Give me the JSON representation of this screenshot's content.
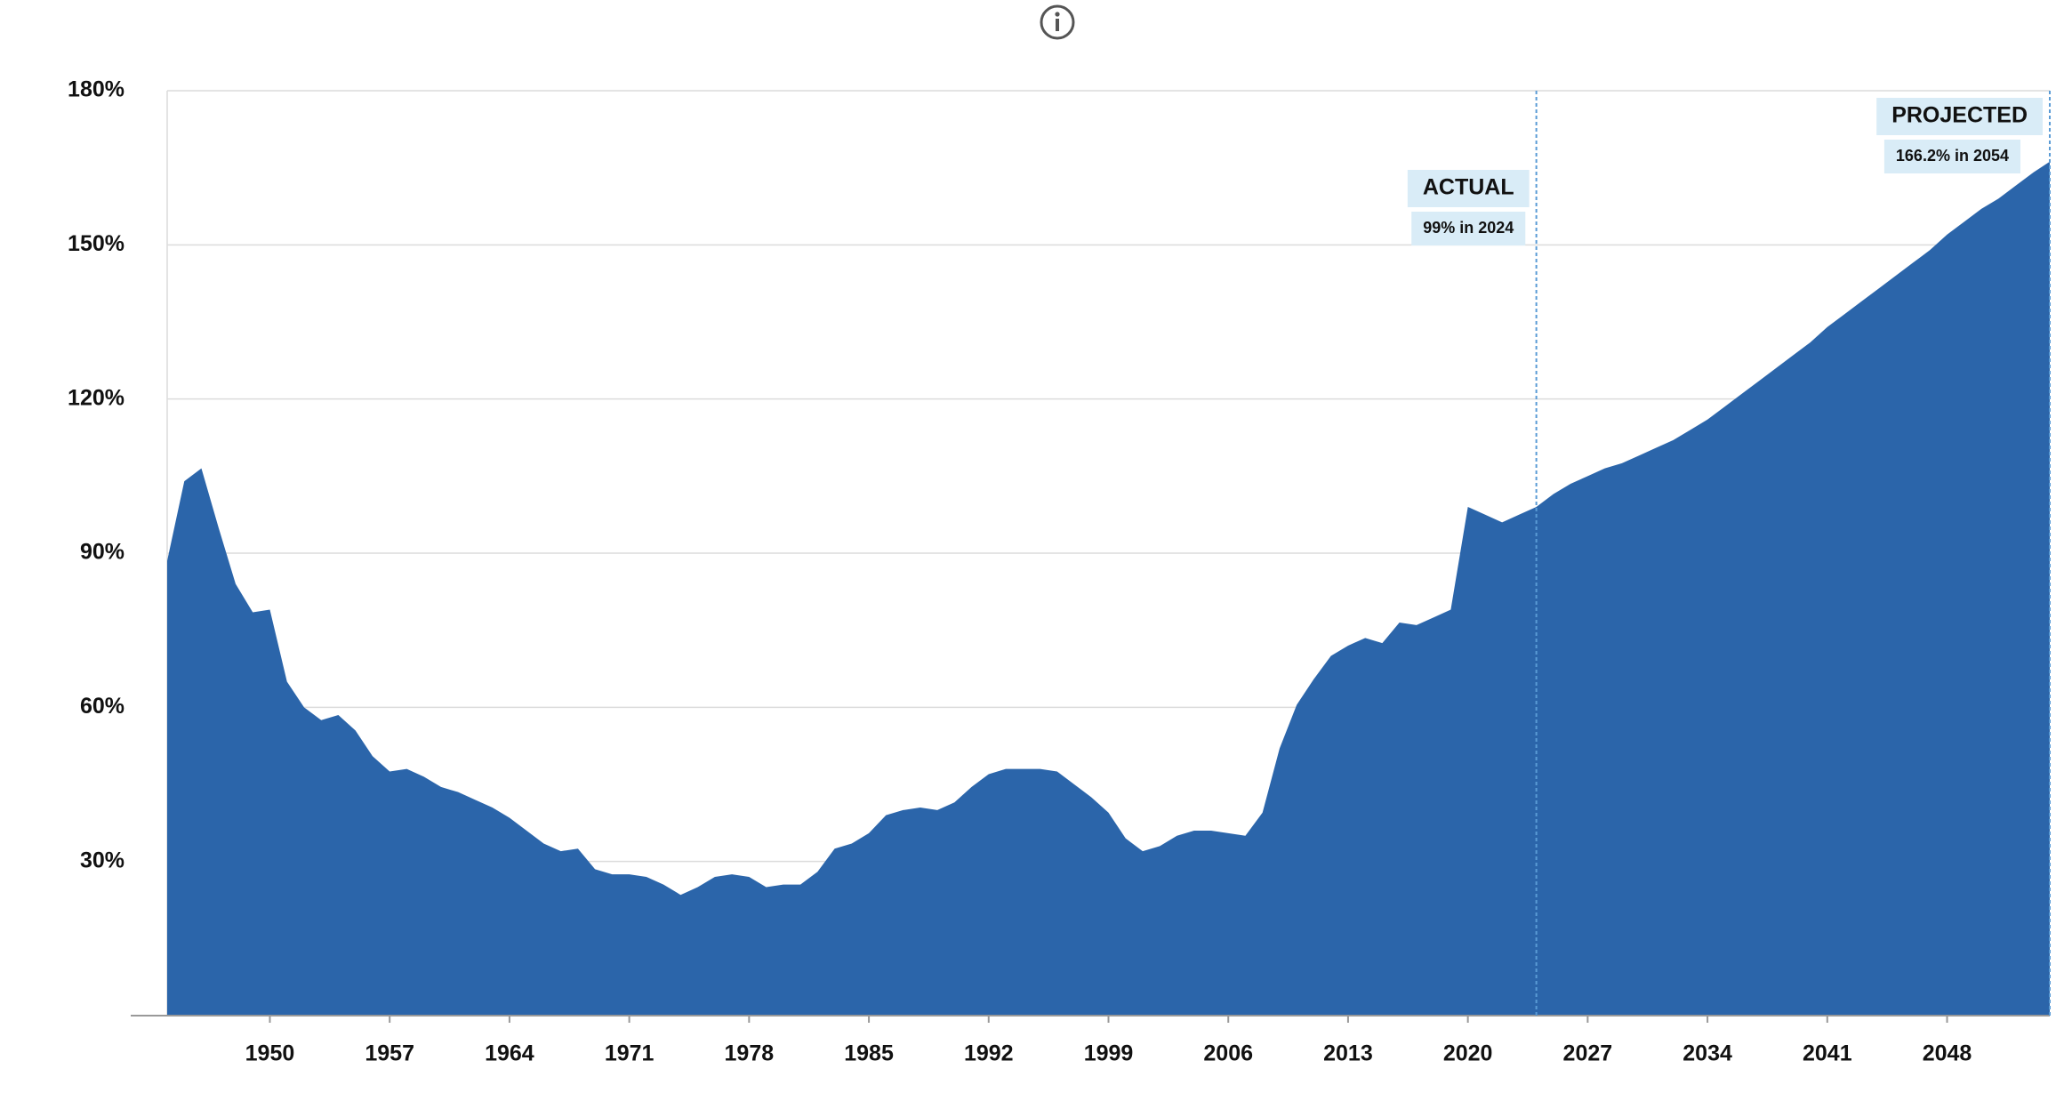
{
  "chart_data": {
    "type": "area",
    "x": [
      1944,
      1945,
      1946,
      1947,
      1948,
      1949,
      1950,
      1951,
      1952,
      1953,
      1954,
      1955,
      1956,
      1957,
      1958,
      1959,
      1960,
      1961,
      1962,
      1963,
      1964,
      1965,
      1966,
      1967,
      1968,
      1969,
      1970,
      1971,
      1972,
      1973,
      1974,
      1975,
      1976,
      1977,
      1978,
      1979,
      1980,
      1981,
      1982,
      1983,
      1984,
      1985,
      1986,
      1987,
      1988,
      1989,
      1990,
      1991,
      1992,
      1993,
      1994,
      1995,
      1996,
      1997,
      1998,
      1999,
      2000,
      2001,
      2002,
      2003,
      2004,
      2005,
      2006,
      2007,
      2008,
      2009,
      2010,
      2011,
      2012,
      2013,
      2014,
      2015,
      2016,
      2017,
      2018,
      2019,
      2020,
      2021,
      2022,
      2023,
      2024,
      2025,
      2026,
      2027,
      2028,
      2029,
      2030,
      2031,
      2032,
      2033,
      2034,
      2035,
      2036,
      2037,
      2038,
      2039,
      2040,
      2041,
      2042,
      2043,
      2044,
      2045,
      2046,
      2047,
      2048,
      2049,
      2050,
      2051,
      2052,
      2053,
      2054
    ],
    "values": [
      88.5,
      104,
      106.5,
      95,
      84,
      78.5,
      79,
      65,
      60,
      57.5,
      58.5,
      55.5,
      50.5,
      47.5,
      48,
      46.5,
      44.5,
      43.5,
      42,
      40.5,
      38.5,
      36,
      33.5,
      32,
      32.5,
      28.5,
      27.5,
      27.5,
      27,
      25.5,
      23.5,
      25,
      27,
      27.5,
      27,
      25,
      25.5,
      25.5,
      28,
      32.5,
      33.5,
      35.5,
      39,
      40,
      40.5,
      40,
      41.5,
      44.5,
      47,
      48,
      48,
      48,
      47.5,
      45,
      42.5,
      39.5,
      34.5,
      32,
      33,
      35,
      36,
      36,
      35.5,
      35,
      39.5,
      52,
      60.5,
      65.5,
      70,
      72,
      73.5,
      72.5,
      76.5,
      76,
      77.5,
      79,
      99,
      97.5,
      96,
      97.5,
      99,
      101.5,
      103.5,
      105,
      106.5,
      107.5,
      109,
      110.5,
      112,
      114,
      116,
      118.5,
      121,
      123.5,
      126,
      128.5,
      131,
      134,
      136.5,
      139,
      141.5,
      144,
      146.5,
      149,
      152,
      154.5,
      157,
      159,
      161.5,
      164,
      166.2
    ],
    "color": "#2b65aa",
    "xlim": [
      1944,
      2054
    ],
    "xticks": [
      1950,
      1957,
      1964,
      1971,
      1978,
      1985,
      1992,
      1999,
      2006,
      2013,
      2020,
      2027,
      2034,
      2041,
      2048
    ],
    "ylim": [
      0,
      180
    ],
    "yticks": [
      {
        "value": 30,
        "label": "30%"
      },
      {
        "value": 60,
        "label": "60%"
      },
      {
        "value": 90,
        "label": "90%"
      },
      {
        "value": 120,
        "label": "120%"
      },
      {
        "value": 150,
        "label": "150%"
      },
      {
        "value": 180,
        "label": "180%"
      }
    ],
    "grid": true,
    "annotations": [
      {
        "title": "ACTUAL",
        "label": "99% in 2024",
        "x": 2024
      },
      {
        "title": "PROJECTED",
        "label": "166.2% in 2054",
        "x": 2054
      }
    ]
  }
}
